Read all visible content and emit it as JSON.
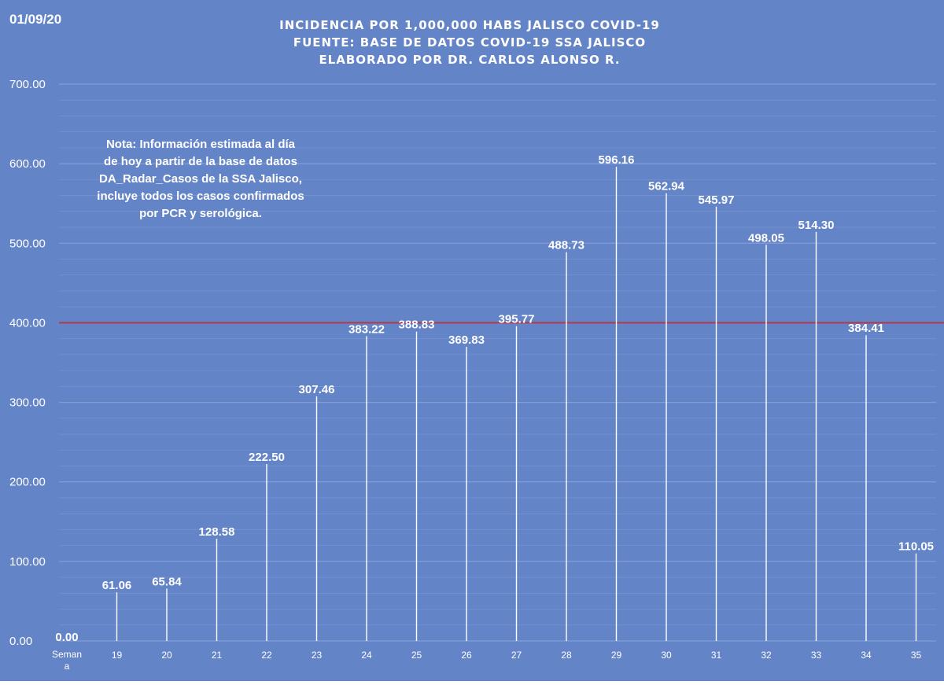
{
  "chart_data": {
    "type": "bar",
    "date_stamp": "01/09/20",
    "title_lines": [
      "INCIDENCIA POR 1,000,000 HABS JALISCO COVID-19",
      "FUENTE: BASE DE DATOS COVID-19 SSA JALISCO",
      "ELABORADO POR DR. CARLOS ALONSO R."
    ],
    "note_lines": [
      "Nota: Información estimada al día",
      "de hoy a partir de la base de datos",
      "DA_Radar_Casos de la SSA Jalisco,",
      "incluye todos los casos confirmados",
      "por PCR y serológica."
    ],
    "categories": [
      "Semana",
      "19",
      "20",
      "21",
      "22",
      "23",
      "24",
      "25",
      "26",
      "27",
      "28",
      "29",
      "30",
      "31",
      "32",
      "33",
      "34",
      "35"
    ],
    "first_category_lines": [
      "Seman",
      "a"
    ],
    "values": [
      0.0,
      61.06,
      65.84,
      128.58,
      222.5,
      307.46,
      383.22,
      388.83,
      369.83,
      395.77,
      488.73,
      596.16,
      562.94,
      545.97,
      498.05,
      514.3,
      384.41,
      110.05
    ],
    "data_labels": [
      "0.00",
      "61.06",
      "65.84",
      "128.58",
      "222.50",
      "307.46",
      "383.22",
      "388.83",
      "369.83",
      "395.77",
      "488.73",
      "596.16",
      "562.94",
      "545.97",
      "498.05",
      "514.30",
      "384.41",
      "110.05"
    ],
    "ylim": [
      0,
      700
    ],
    "yticks": [
      "0.00",
      "100.00",
      "200.00",
      "300.00",
      "400.00",
      "500.00",
      "600.00",
      "700.00"
    ],
    "ytick_values": [
      0,
      100,
      200,
      300,
      400,
      500,
      600,
      700
    ],
    "reference_line": 400,
    "grid": true,
    "legend": "none",
    "colors": {
      "background": "#6484c8",
      "bar": "#ffffff",
      "gridline": "#8fa6db",
      "reference_line": "#b23a48",
      "text": "#ffffff"
    }
  }
}
